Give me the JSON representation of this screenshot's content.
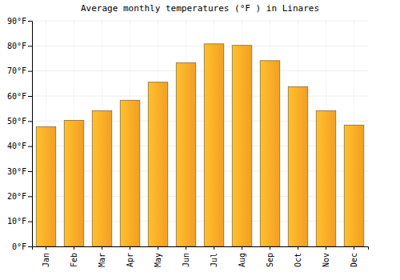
{
  "chart_data": {
    "type": "bar",
    "title": "Average monthly temperatures (°F ) in Linares",
    "categories": [
      "Jan",
      "Feb",
      "Mar",
      "Apr",
      "May",
      "Jun",
      "Jul",
      "Aug",
      "Sep",
      "Oct",
      "Nov",
      "Dec"
    ],
    "values": [
      47.7,
      50.3,
      54.1,
      58.3,
      65.5,
      73.2,
      80.8,
      80.2,
      74.1,
      63.7,
      54.1,
      48.4
    ],
    "color": "#ffa726",
    "ylim": [
      0,
      90
    ],
    "yticks": [
      {
        "value": 0,
        "label": "0°F"
      },
      {
        "value": 10,
        "label": "10°F"
      },
      {
        "value": 20,
        "label": "20°F"
      },
      {
        "value": 30,
        "label": "30°F"
      },
      {
        "value": 40,
        "label": "40°F"
      },
      {
        "value": 50,
        "label": "50°F"
      },
      {
        "value": 60,
        "label": "60°F"
      },
      {
        "value": 70,
        "label": "70°F"
      },
      {
        "value": 80,
        "label": "80°F"
      },
      {
        "value": 90,
        "label": "90°F"
      }
    ],
    "grid": true
  }
}
